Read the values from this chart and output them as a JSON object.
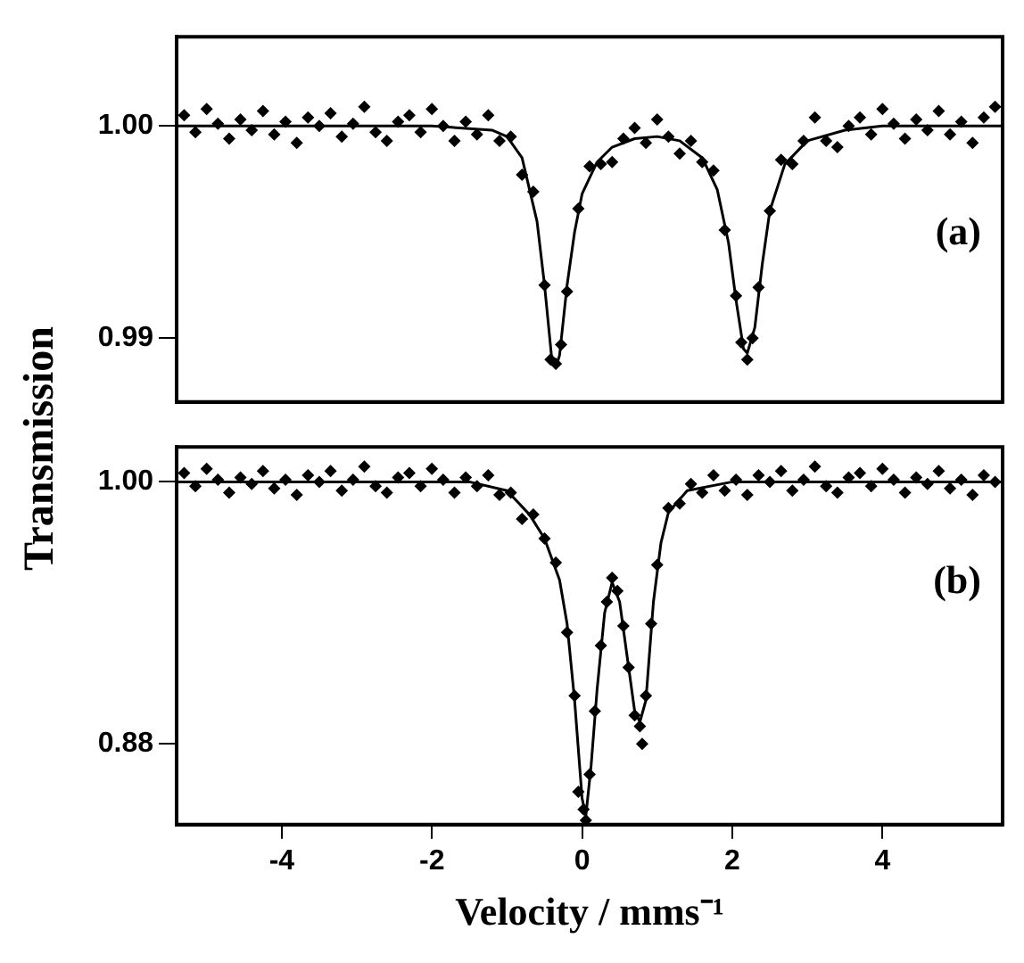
{
  "chart_data": [
    {
      "type": "scatter",
      "ylabel": "Transmission",
      "annotations": [
        "(a)"
      ],
      "xlim": [
        -5.4,
        5.6
      ],
      "ylim": [
        0.987,
        1.0042
      ],
      "yticks": [
        {
          "value": 1,
          "label": "1.00"
        },
        0.99
      ],
      "tick_labels": "y",
      "series": [
        {
          "marker": "diamond",
          "color": "#000000",
          "x": [
            -5.3,
            -5.15,
            -5.0,
            -4.85,
            -4.7,
            -4.55,
            -4.4,
            -4.25,
            -4.1,
            -3.95,
            -3.8,
            -3.65,
            -3.5,
            -3.35,
            -3.2,
            -3.05,
            -2.9,
            -2.75,
            -2.6,
            -2.45,
            -2.3,
            -2.15,
            -2.0,
            -1.85,
            -1.7,
            -1.55,
            -1.4,
            -1.25,
            -1.1,
            -0.95,
            -0.8,
            -0.65,
            -0.5,
            -0.35,
            -0.2,
            -0.05,
            0.1,
            0.25,
            0.4,
            0.55,
            0.7,
            0.85,
            1.0,
            1.15,
            1.3,
            1.45,
            1.6,
            1.75,
            1.9,
            2.05,
            2.2,
            2.35,
            2.5,
            2.65,
            2.8,
            2.95,
            3.1,
            3.25,
            3.4,
            3.55,
            3.7,
            3.85,
            4.0,
            4.15,
            4.3,
            4.45,
            4.6,
            4.75,
            4.9,
            5.05,
            5.2,
            5.35,
            5.5,
            -0.42,
            -0.28,
            2.12,
            2.27
          ],
          "values": [
            1.0005,
            0.9997,
            1.0008,
            1.0001,
            0.9994,
            1.0003,
            0.9998,
            1.0007,
            0.9996,
            1.0002,
            0.9992,
            1.0004,
            1.0,
            1.0006,
            0.9995,
            1.0001,
            1.0009,
            0.9997,
            0.9993,
            1.0002,
            1.0005,
            0.9997,
            1.0008,
            1.0,
            0.9993,
            1.0002,
            0.9996,
            1.0005,
            0.9993,
            0.9995,
            0.9977,
            0.9969,
            0.9925,
            0.9888,
            0.9922,
            0.9961,
            0.9981,
            0.9982,
            0.9983,
            0.9994,
            0.9999,
            0.9992,
            1.0003,
            0.9995,
            0.9987,
            0.9993,
            0.9983,
            0.9979,
            0.9951,
            0.992,
            0.989,
            0.9924,
            0.996,
            0.9984,
            0.9982,
            0.9993,
            1.0004,
            0.9993,
            0.999,
            1.0,
            1.0004,
            0.9996,
            1.0008,
            1.0001,
            0.9994,
            1.0003,
            0.9998,
            1.0007,
            0.9996,
            1.0002,
            0.9992,
            1.0004,
            1.0009,
            0.989,
            0.9897,
            0.9898,
            0.99
          ]
        },
        {
          "type": "line",
          "marker": "none",
          "color": "#000000",
          "x": [
            -5.4,
            -2,
            -1.2,
            -1.0,
            -0.8,
            -0.6,
            -0.5,
            -0.4,
            -0.35,
            -0.3,
            -0.2,
            -0.1,
            0,
            0.2,
            0.4,
            0.7,
            1.0,
            1.3,
            1.6,
            1.8,
            1.95,
            2.05,
            2.15,
            2.2,
            2.3,
            2.4,
            2.5,
            2.7,
            3.0,
            3.5,
            4.0,
            5.6
          ],
          "values": [
            1.0,
            1.0,
            0.9998,
            0.9995,
            0.9985,
            0.9955,
            0.9925,
            0.9889,
            0.9886,
            0.9892,
            0.9925,
            0.995,
            0.9968,
            0.9983,
            0.999,
            0.9994,
            0.9995,
            0.9993,
            0.9985,
            0.997,
            0.9945,
            0.9918,
            0.9895,
            0.9893,
            0.9905,
            0.9935,
            0.996,
            0.9982,
            0.9993,
            0.9998,
            1.0,
            1.0
          ]
        }
      ]
    },
    {
      "type": "scatter",
      "xlabel": "Velocity / mms⁻¹",
      "annotations": [
        "(b)"
      ],
      "xlim": [
        -5.4,
        5.6
      ],
      "xticks": [
        -4,
        -2,
        0,
        2,
        4
      ],
      "ylim": [
        0.843,
        1.016
      ],
      "yticks": [
        {
          "value": 1,
          "label": "1.00"
        },
        0.88
      ],
      "series": [
        {
          "marker": "diamond",
          "color": "#000000",
          "x": [
            -5.3,
            -5.15,
            -5.0,
            -4.85,
            -4.7,
            -4.55,
            -4.4,
            -4.25,
            -4.1,
            -3.95,
            -3.8,
            -3.65,
            -3.5,
            -3.35,
            -3.2,
            -3.05,
            -2.9,
            -2.75,
            -2.6,
            -2.45,
            -2.3,
            -2.15,
            -2.0,
            -1.85,
            -1.7,
            -1.55,
            -1.4,
            -1.25,
            -1.1,
            -0.95,
            -0.8,
            -0.65,
            -0.5,
            -0.35,
            -0.2,
            -0.05,
            0.1,
            0.25,
            0.4,
            0.55,
            0.7,
            0.85,
            1.0,
            1.15,
            1.3,
            1.45,
            1.6,
            1.75,
            1.9,
            2.05,
            2.2,
            2.35,
            2.5,
            2.65,
            2.8,
            2.95,
            3.1,
            3.25,
            3.4,
            3.55,
            3.7,
            3.85,
            4.0,
            4.15,
            4.3,
            4.45,
            4.6,
            4.75,
            4.9,
            5.05,
            5.2,
            5.35,
            5.5,
            0.02,
            0.05,
            -0.1,
            0.17,
            0.33,
            0.47,
            0.62,
            0.77,
            0.8,
            0.92
          ],
          "values": [
            1.004,
            0.998,
            1.006,
            1.001,
            0.995,
            1.002,
            0.999,
            1.005,
            0.997,
            1.001,
            0.994,
            1.003,
            1.0,
            1.005,
            0.996,
            1.001,
            1.007,
            0.998,
            0.995,
            1.002,
            1.004,
            0.998,
            1.006,
            1.001,
            0.995,
            1.002,
            0.998,
            1.003,
            0.994,
            0.995,
            0.983,
            0.985,
            0.974,
            0.963,
            0.931,
            0.858,
            0.866,
            0.925,
            0.956,
            0.934,
            0.893,
            0.902,
            0.962,
            0.988,
            0.99,
            0.999,
            0.995,
            1.003,
            0.996,
            1.001,
            0.994,
            1.003,
            1.0,
            1.005,
            0.996,
            1.001,
            1.007,
            0.998,
            0.995,
            1.002,
            1.004,
            0.998,
            1.006,
            1.001,
            0.995,
            1.002,
            0.999,
            1.005,
            0.997,
            1.001,
            0.994,
            1.003,
            1.0,
            0.85,
            0.845,
            0.902,
            0.895,
            0.945,
            0.95,
            0.915,
            0.888,
            0.88,
            0.935
          ]
        },
        {
          "type": "line",
          "marker": "none",
          "color": "#000000",
          "x": [
            -5.4,
            -1.5,
            -1.0,
            -0.7,
            -0.5,
            -0.3,
            -0.2,
            -0.1,
            0.0,
            0.05,
            0.12,
            0.2,
            0.3,
            0.4,
            0.5,
            0.6,
            0.7,
            0.77,
            0.85,
            0.95,
            1.05,
            1.15,
            1.4,
            2.0,
            5.6
          ],
          "values": [
            1.0,
            1.0,
            0.996,
            0.985,
            0.974,
            0.955,
            0.935,
            0.9,
            0.855,
            0.847,
            0.87,
            0.905,
            0.94,
            0.954,
            0.945,
            0.92,
            0.895,
            0.89,
            0.9,
            0.945,
            0.972,
            0.986,
            0.996,
            1.0,
            1.0
          ]
        }
      ]
    }
  ]
}
